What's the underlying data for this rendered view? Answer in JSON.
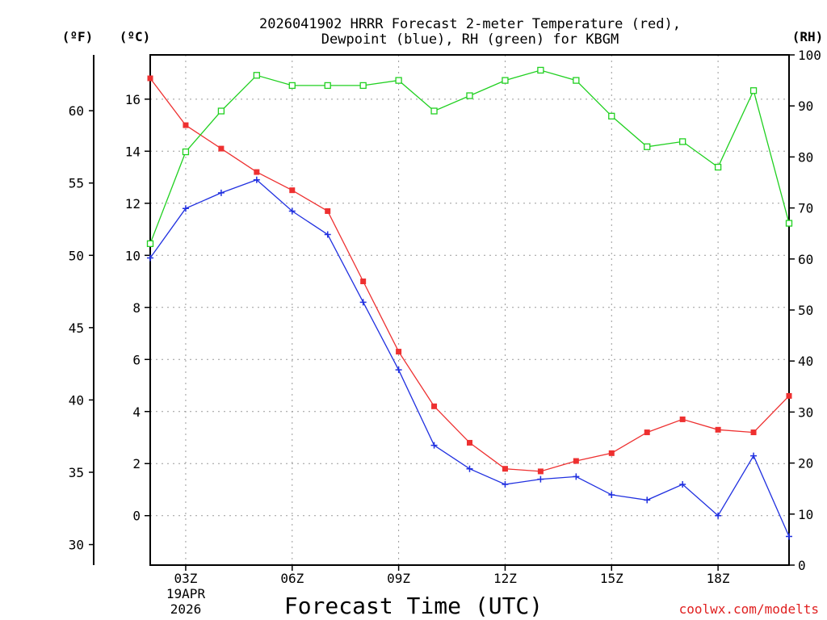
{
  "chart_data": {
    "type": "line",
    "title_line1": "2026041902 HRRR Forecast 2-meter Temperature (red),",
    "title_line2": "Dewpoint (blue), RH (green) for KBGM",
    "xlabel": "Forecast Time (UTC)",
    "credit": "coolwx.com/modelts",
    "unit_f": "(ºF)",
    "unit_c": "(ºC)",
    "unit_rh": "(RH)",
    "x_hours": [
      2,
      3,
      4,
      5,
      6,
      7,
      8,
      9,
      10,
      11,
      12,
      13,
      14,
      15,
      16,
      17,
      18,
      19,
      20
    ],
    "xlim": [
      2,
      20
    ],
    "x_ticks": [
      {
        "hour": 3,
        "label": "03Z"
      },
      {
        "hour": 6,
        "label": "06Z"
      },
      {
        "hour": 9,
        "label": "09Z"
      },
      {
        "hour": 12,
        "label": "12Z"
      },
      {
        "hour": 15,
        "label": "15Z"
      },
      {
        "hour": 18,
        "label": "18Z"
      }
    ],
    "date_line1": "19APR",
    "date_line2": "2026",
    "ylim_c": [
      -1.9,
      17.7
    ],
    "y_ticks_c": [
      "0",
      "2",
      "4",
      "6",
      "8",
      "10",
      "12",
      "14",
      "16"
    ],
    "y_ticks_f": [
      "30",
      "35",
      "40",
      "45",
      "50",
      "55",
      "60"
    ],
    "ylim_rh": [
      0,
      100
    ],
    "y_ticks_rh": [
      "0",
      "10",
      "20",
      "30",
      "40",
      "50",
      "60",
      "70",
      "80",
      "90",
      "100"
    ],
    "grid": true,
    "series": [
      {
        "name": "Temperature",
        "axis": "c",
        "color": "#ee3030",
        "marker": "square-filled",
        "values": [
          16.8,
          15.0,
          14.1,
          13.2,
          12.5,
          11.7,
          9.0,
          6.3,
          4.2,
          2.8,
          1.8,
          1.7,
          2.1,
          2.4,
          3.2,
          3.7,
          3.3,
          3.2,
          4.6
        ]
      },
      {
        "name": "Dewpoint",
        "axis": "c",
        "color": "#2030e0",
        "marker": "plus",
        "values": [
          9.9,
          11.8,
          12.4,
          12.9,
          11.7,
          10.8,
          8.2,
          5.6,
          2.7,
          1.8,
          1.2,
          1.4,
          1.5,
          0.8,
          0.6,
          1.2,
          0.0,
          2.3,
          -0.8
        ]
      },
      {
        "name": "RH",
        "axis": "rh",
        "color": "#20d020",
        "marker": "square-open",
        "values": [
          63,
          81,
          89,
          96,
          94,
          94,
          94,
          95,
          89,
          92,
          95,
          97,
          95,
          88,
          82,
          83,
          78,
          93,
          67
        ]
      }
    ]
  }
}
